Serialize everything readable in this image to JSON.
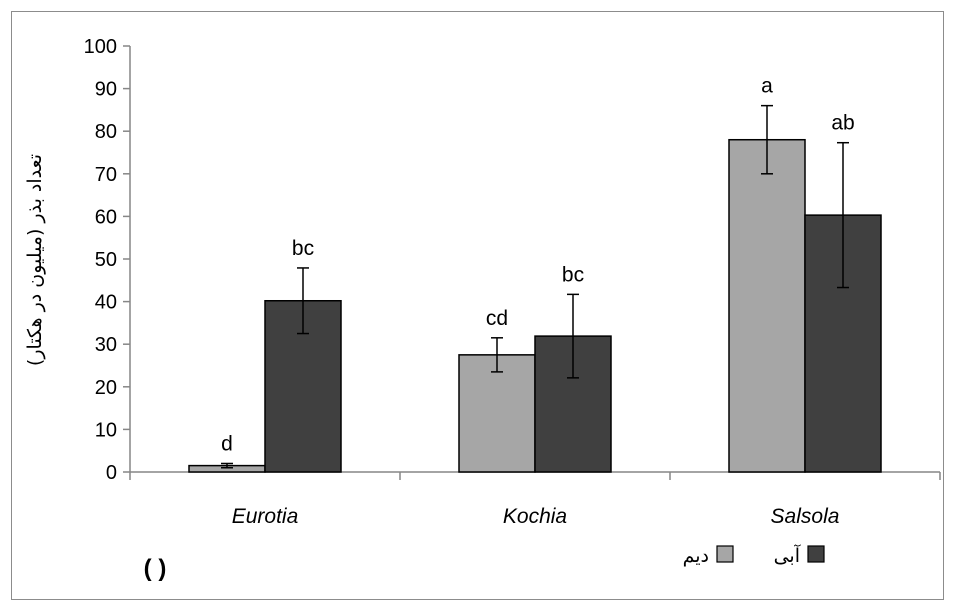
{
  "chart_data": {
    "type": "bar",
    "title": "",
    "xlabel": "",
    "ylabel": "تعداد بذر (میلیون در هکتار)",
    "ylim": [
      0,
      100
    ],
    "yticks": [
      0,
      10,
      20,
      30,
      40,
      50,
      60,
      70,
      80,
      90,
      100
    ],
    "categories": [
      "Eurotia",
      "Kochia",
      "Salsola"
    ],
    "series": [
      {
        "name": "دیم",
        "color": "#a6a6a6",
        "values": [
          1.5,
          27.5,
          78
        ],
        "error": [
          0.5,
          4,
          8
        ],
        "labels": [
          "d",
          "cd",
          "a"
        ]
      },
      {
        "name": "آبی",
        "color": "#404040",
        "values": [
          40.2,
          31.9,
          60.3
        ],
        "error": [
          7.7,
          9.8,
          17
        ],
        "labels": [
          "bc",
          "bc",
          "ab"
        ]
      }
    ],
    "legend_position": "bottom-right",
    "panel_label": "( )",
    "grid": false
  }
}
